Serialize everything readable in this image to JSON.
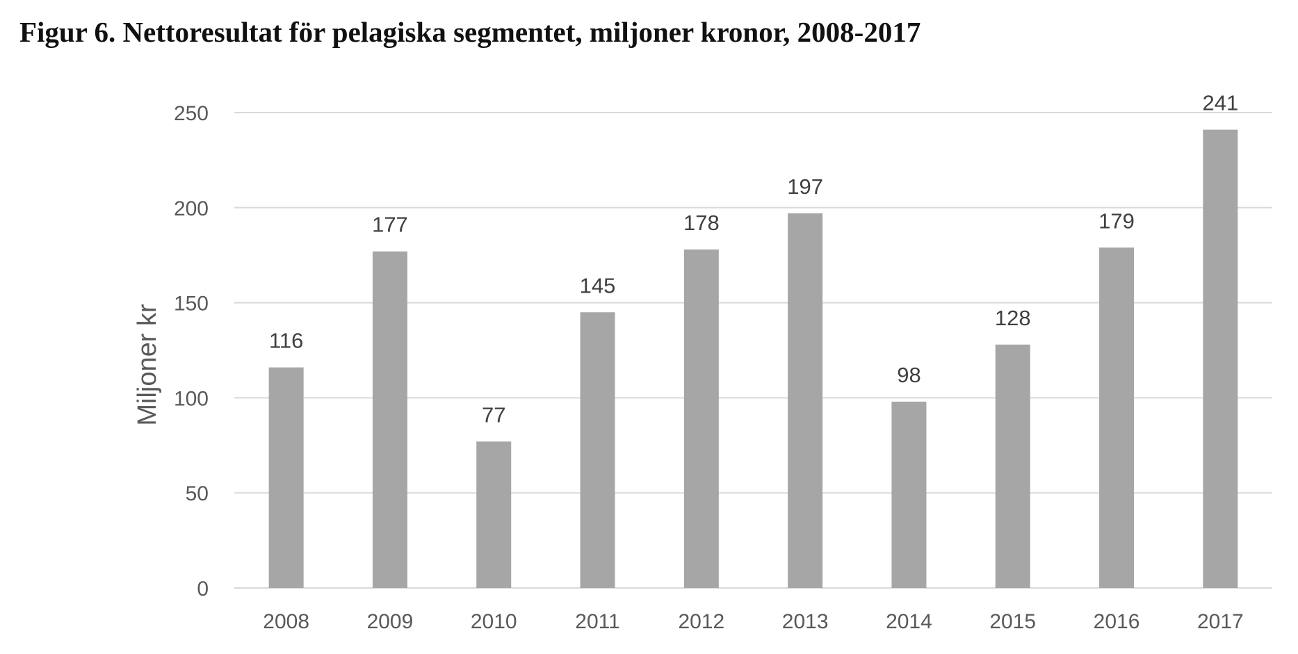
{
  "figure": {
    "title": "Figur 6. Nettoresultat för pelagiska segmentet, miljoner kronor, 2008-2017"
  },
  "chart_data": {
    "type": "bar",
    "title": "Figur 6. Nettoresultat för pelagiska segmentet, miljoner kronor, 2008-2017",
    "xlabel": "",
    "ylabel": "Miljoner kr",
    "categories": [
      "2008",
      "2009",
      "2010",
      "2011",
      "2012",
      "2013",
      "2014",
      "2015",
      "2016",
      "2017"
    ],
    "values": [
      116,
      177,
      77,
      145,
      178,
      197,
      98,
      128,
      179,
      241
    ],
    "data_labels": [
      "116",
      "177",
      "77",
      "145",
      "178",
      "197",
      "98",
      "128",
      "179",
      "241"
    ],
    "ylim": [
      0,
      250
    ],
    "yticks": [
      "0",
      "50",
      "100",
      "150",
      "200",
      "250"
    ],
    "grid": true,
    "legend": "none",
    "colors": {
      "bar": "#a6a6a6",
      "grid": "#d9d9d9",
      "axis_text": "#595959",
      "label_text": "#404040"
    }
  }
}
